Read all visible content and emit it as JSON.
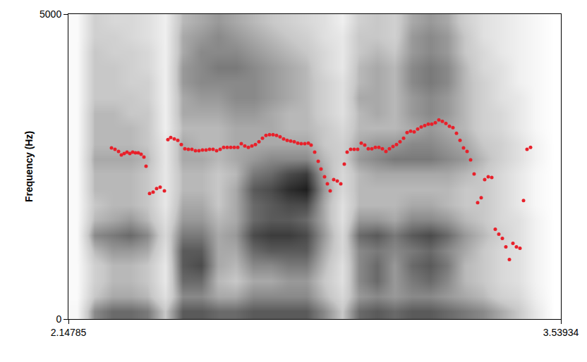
{
  "chart_data": {
    "type": "spectrogram",
    "y_label": "Frequency (Hz)",
    "xlim": [
      2.14785,
      3.53934
    ],
    "xticks": [
      2.14785,
      3.53934
    ],
    "ylim": [
      0,
      5000
    ],
    "yticks": [
      0,
      5000
    ],
    "grid": false,
    "cells": {
      "x": [
        2.1728,
        2.2226,
        2.2725,
        2.3223,
        2.3721,
        2.422,
        2.4718,
        2.5217,
        2.5715,
        2.6213,
        2.6712,
        2.721,
        2.7708,
        2.8207,
        2.8705,
        2.9204,
        2.9702,
        3.02,
        3.0699,
        3.1197,
        3.1695,
        3.2194,
        3.2692,
        3.3191,
        3.3689,
        3.4187,
        3.4686,
        3.5184
      ],
      "y": [
        125,
        375,
        625,
        875,
        1125,
        1375,
        1625,
        1875,
        2125,
        2375,
        2625,
        2875,
        3125,
        3375,
        3625,
        3875,
        4125,
        4375,
        4625,
        4875
      ],
      "range": [
        0,
        100
      ],
      "values": [
        [
          5,
          55,
          65,
          65,
          60,
          35,
          70,
          70,
          65,
          65,
          70,
          70,
          70,
          70,
          55,
          35,
          65,
          70,
          65,
          70,
          70,
          65,
          60,
          55,
          45,
          35,
          15,
          0
        ],
        [
          3,
          35,
          45,
          45,
          40,
          20,
          55,
          55,
          45,
          45,
          55,
          55,
          55,
          55,
          40,
          25,
          50,
          55,
          50,
          55,
          55,
          50,
          45,
          40,
          30,
          25,
          10,
          0
        ],
        [
          3,
          30,
          40,
          40,
          35,
          15,
          65,
          65,
          40,
          35,
          45,
          45,
          50,
          50,
          35,
          20,
          55,
          65,
          50,
          60,
          65,
          55,
          40,
          35,
          25,
          20,
          8,
          0
        ],
        [
          3,
          30,
          40,
          40,
          35,
          15,
          70,
          75,
          45,
          40,
          55,
          55,
          60,
          60,
          40,
          20,
          55,
          65,
          50,
          65,
          70,
          60,
          40,
          35,
          25,
          20,
          8,
          0
        ],
        [
          3,
          40,
          50,
          50,
          45,
          20,
          70,
          70,
          45,
          45,
          65,
          70,
          70,
          70,
          45,
          25,
          55,
          60,
          55,
          60,
          65,
          55,
          45,
          35,
          25,
          20,
          8,
          0
        ],
        [
          3,
          55,
          60,
          65,
          55,
          25,
          60,
          60,
          45,
          50,
          75,
          80,
          80,
          75,
          50,
          25,
          65,
          70,
          60,
          70,
          75,
          65,
          50,
          40,
          30,
          20,
          8,
          0
        ],
        [
          3,
          40,
          45,
          50,
          40,
          20,
          50,
          50,
          40,
          45,
          65,
          70,
          70,
          65,
          45,
          20,
          50,
          50,
          45,
          55,
          55,
          50,
          40,
          35,
          25,
          20,
          8,
          0
        ],
        [
          3,
          35,
          40,
          40,
          35,
          15,
          45,
          45,
          35,
          45,
          65,
          70,
          75,
          75,
          45,
          20,
          40,
          40,
          40,
          45,
          45,
          40,
          35,
          35,
          25,
          15,
          5,
          0
        ],
        [
          3,
          40,
          40,
          40,
          35,
          15,
          40,
          40,
          35,
          45,
          70,
          75,
          85,
          90,
          50,
          25,
          40,
          40,
          40,
          40,
          40,
          40,
          35,
          35,
          25,
          15,
          5,
          0
        ],
        [
          3,
          40,
          40,
          40,
          35,
          15,
          40,
          40,
          35,
          40,
          60,
          65,
          75,
          80,
          45,
          25,
          40,
          45,
          45,
          45,
          45,
          45,
          40,
          35,
          25,
          15,
          5,
          0
        ],
        [
          3,
          45,
          45,
          45,
          40,
          15,
          45,
          45,
          40,
          45,
          50,
          55,
          55,
          55,
          40,
          30,
          50,
          55,
          60,
          60,
          60,
          55,
          50,
          40,
          30,
          20,
          8,
          0
        ],
        [
          3,
          40,
          40,
          40,
          35,
          15,
          45,
          40,
          40,
          45,
          45,
          45,
          45,
          45,
          35,
          30,
          45,
          50,
          50,
          55,
          55,
          50,
          45,
          35,
          30,
          20,
          8,
          0
        ],
        [
          3,
          40,
          40,
          40,
          35,
          10,
          40,
          40,
          40,
          45,
          45,
          45,
          40,
          40,
          35,
          25,
          40,
          40,
          40,
          45,
          50,
          45,
          40,
          30,
          25,
          15,
          5,
          0
        ],
        [
          3,
          40,
          40,
          35,
          35,
          10,
          45,
          45,
          45,
          50,
          50,
          45,
          40,
          40,
          30,
          20,
          40,
          45,
          40,
          50,
          55,
          50,
          40,
          30,
          25,
          15,
          5,
          0
        ],
        [
          3,
          35,
          35,
          35,
          30,
          10,
          45,
          50,
          50,
          55,
          55,
          50,
          45,
          40,
          30,
          20,
          45,
          45,
          40,
          50,
          55,
          50,
          40,
          30,
          20,
          15,
          5,
          0
        ],
        [
          3,
          35,
          35,
          30,
          30,
          10,
          50,
          55,
          55,
          55,
          55,
          50,
          45,
          40,
          30,
          20,
          40,
          45,
          40,
          55,
          60,
          55,
          40,
          30,
          20,
          10,
          5,
          0
        ],
        [
          3,
          35,
          35,
          30,
          25,
          10,
          50,
          55,
          60,
          60,
          55,
          50,
          45,
          40,
          25,
          15,
          40,
          45,
          40,
          55,
          60,
          55,
          40,
          25,
          20,
          10,
          5,
          0
        ],
        [
          3,
          35,
          30,
          30,
          25,
          10,
          45,
          55,
          55,
          55,
          50,
          45,
          40,
          35,
          25,
          15,
          35,
          40,
          35,
          50,
          55,
          50,
          35,
          25,
          15,
          10,
          5,
          0
        ],
        [
          3,
          30,
          30,
          25,
          20,
          10,
          45,
          50,
          55,
          50,
          45,
          40,
          35,
          30,
          20,
          15,
          35,
          35,
          30,
          50,
          55,
          50,
          35,
          20,
          15,
          10,
          5,
          0
        ],
        [
          3,
          30,
          25,
          25,
          20,
          10,
          40,
          45,
          50,
          45,
          40,
          35,
          30,
          25,
          20,
          10,
          30,
          35,
          30,
          45,
          50,
          45,
          30,
          20,
          15,
          10,
          5,
          0
        ]
      ]
    },
    "series": [
      {
        "color": "#e8202a",
        "marker": "circle",
        "x": [
          2.2695,
          2.2794,
          2.2894,
          2.2974,
          2.3053,
          2.3133,
          2.3213,
          2.3293,
          2.3372,
          2.3452,
          2.3532,
          2.3612,
          2.3671,
          2.3771,
          2.3871,
          2.397,
          2.407,
          2.419,
          2.4289,
          2.4369,
          2.4469,
          2.4568,
          2.4668,
          2.4768,
          2.4867,
          2.4967,
          2.5067,
          2.5166,
          2.5266,
          2.5366,
          2.5466,
          2.5565,
          2.5665,
          2.5765,
          2.5864,
          2.5964,
          2.6064,
          2.6163,
          2.6263,
          2.6363,
          2.6462,
          2.6562,
          2.6662,
          2.6761,
          2.6861,
          2.6961,
          2.706,
          2.716,
          2.726,
          2.7359,
          2.7459,
          2.7559,
          2.7658,
          2.7758,
          2.7858,
          2.7958,
          2.8057,
          2.8157,
          2.8257,
          2.8336,
          2.8436,
          2.8536,
          2.8615,
          2.8715,
          2.8795,
          2.8874,
          2.8974,
          2.9074,
          2.9174,
          2.9273,
          2.9353,
          2.9453,
          2.9552,
          2.9652,
          2.9752,
          2.9851,
          2.9951,
          3.0051,
          3.015,
          3.025,
          3.035,
          3.0449,
          3.0549,
          3.0649,
          3.0748,
          3.0848,
          3.0948,
          3.1047,
          3.1147,
          3.1247,
          3.1347,
          3.1446,
          3.1546,
          3.1646,
          3.1745,
          3.1845,
          3.1945,
          3.2044,
          3.2144,
          3.2244,
          3.2343,
          3.2443,
          3.2543,
          3.2642,
          3.2742,
          3.2842,
          3.2941,
          3.3041,
          3.3141,
          3.324,
          3.334,
          3.344,
          3.3539,
          3.3639,
          3.3739,
          3.3838,
          3.3938,
          3.4038,
          3.4137,
          3.4237,
          3.4337,
          3.4436,
          3.4536
        ],
        "values": [
          2805,
          2782,
          2747,
          2690,
          2713,
          2736,
          2713,
          2736,
          2724,
          2724,
          2701,
          2655,
          2506,
          2057,
          2080,
          2138,
          2161,
          2103,
          2942,
          2977,
          2954,
          2931,
          2862,
          2793,
          2782,
          2782,
          2759,
          2759,
          2770,
          2770,
          2782,
          2782,
          2759,
          2782,
          2816,
          2816,
          2816,
          2816,
          2816,
          2874,
          2839,
          2816,
          2839,
          2862,
          2908,
          2965,
          3011,
          3023,
          3023,
          3011,
          2988,
          2954,
          2931,
          2919,
          2908,
          2885,
          2874,
          2874,
          2885,
          2851,
          2736,
          2586,
          2460,
          2333,
          2218,
          2103,
          2287,
          2264,
          2218,
          2540,
          2736,
          2782,
          2782,
          2782,
          2885,
          2851,
          2793,
          2793,
          2816,
          2816,
          2793,
          2747,
          2793,
          2828,
          2862,
          2908,
          2965,
          3057,
          3080,
          3069,
          3115,
          3149,
          3172,
          3195,
          3195,
          3218,
          3264,
          3241,
          3207,
          3161,
          3138,
          3046,
          2931,
          2805,
          2747,
          2609,
          2379,
          1908,
          1988,
          2287,
          2333,
          2322,
          1471,
          1391,
          1322,
          1184,
          977,
          1241,
          1184,
          1161,
          1942,
          2782,
          2816
        ]
      }
    ]
  }
}
